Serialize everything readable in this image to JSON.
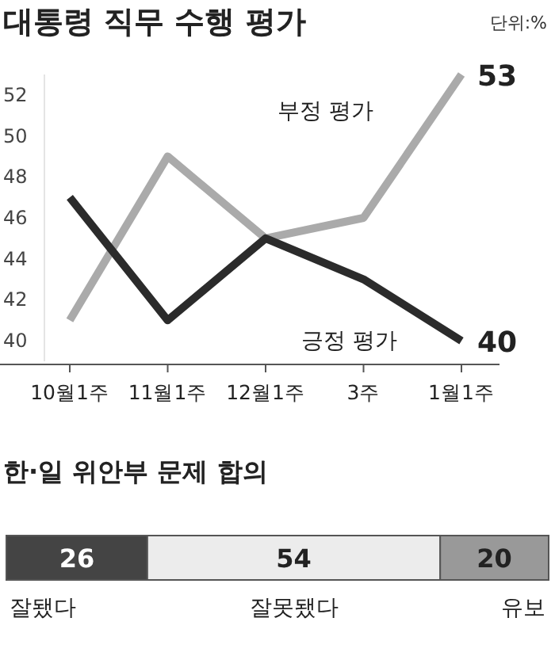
{
  "chart_data": [
    {
      "type": "line",
      "title": "대통령 직무 수행 평가",
      "annotations": [
        "단위:%"
      ],
      "categories": [
        "10월1주",
        "11월1주",
        "12월1주",
        "3주",
        "1월1주"
      ],
      "ylim": [
        39,
        53
      ],
      "yticks": [
        40,
        42,
        44,
        46,
        48,
        50,
        52
      ],
      "grid": false,
      "marker": "none",
      "line_style": "solid",
      "series": [
        {
          "name": "부정 평가",
          "color": "#aaaaaa",
          "values": [
            41,
            49,
            45,
            46,
            53
          ],
          "value_labels": [
            null,
            null,
            null,
            null,
            "53"
          ]
        },
        {
          "name": "긍정 평가",
          "color": "#2b2b2b",
          "values": [
            47,
            41,
            45,
            43,
            40
          ],
          "value_labels": [
            null,
            null,
            null,
            null,
            "40"
          ]
        }
      ]
    },
    {
      "type": "bar",
      "title": "한·일 위안부 문제 합의",
      "orientation": "horizontal",
      "stacked": true,
      "data_labels": true,
      "categories": [
        null
      ],
      "series": [
        {
          "name": "잘됐다",
          "color": "#444444",
          "values": [
            26
          ]
        },
        {
          "name": "잘못됐다",
          "color": "#ececec",
          "values": [
            54
          ]
        },
        {
          "name": "유보",
          "color": "#999999",
          "values": [
            20
          ]
        }
      ]
    }
  ]
}
